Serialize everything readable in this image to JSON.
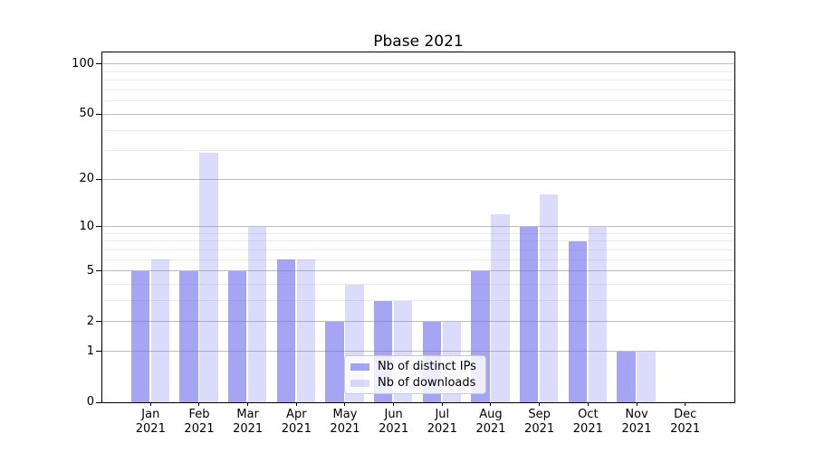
{
  "title": "Pbase 2021",
  "chart_data": {
    "type": "bar",
    "title": "Pbase 2021",
    "categories": [
      {
        "month": "Jan",
        "year": "2021"
      },
      {
        "month": "Feb",
        "year": "2021"
      },
      {
        "month": "Mar",
        "year": "2021"
      },
      {
        "month": "Apr",
        "year": "2021"
      },
      {
        "month": "May",
        "year": "2021"
      },
      {
        "month": "Jun",
        "year": "2021"
      },
      {
        "month": "Jul",
        "year": "2021"
      },
      {
        "month": "Aug",
        "year": "2021"
      },
      {
        "month": "Sep",
        "year": "2021"
      },
      {
        "month": "Oct",
        "year": "2021"
      },
      {
        "month": "Nov",
        "year": "2021"
      },
      {
        "month": "Dec",
        "year": "2021"
      }
    ],
    "series": [
      {
        "name": "Nb of distinct IPs",
        "color": "rgba(110,110,238,0.62)",
        "values": [
          5,
          5,
          5,
          6,
          2,
          3,
          2,
          5,
          10,
          8,
          1,
          0
        ]
      },
      {
        "name": "Nb of downloads",
        "color": "rgba(110,110,238,0.25)",
        "values": [
          6,
          29,
          10,
          6,
          4,
          3,
          2,
          12,
          16,
          10,
          1,
          0
        ]
      }
    ],
    "yscale": "log10(1+x)",
    "y_major_ticks": [
      0,
      1,
      2,
      5,
      10,
      20,
      50,
      100
    ],
    "y_minor_ticks": [
      3,
      4,
      6,
      7,
      8,
      9,
      30,
      40,
      60,
      70,
      80,
      90
    ],
    "ylim": [
      0,
      117
    ],
    "grid": true,
    "legend_position": "lower center",
    "colors": {
      "grid_major": "#bdbdbd",
      "grid_minor": "#eaeaea",
      "spine": "#000000",
      "text": "#000000",
      "legend_border": "#cccccc"
    }
  }
}
